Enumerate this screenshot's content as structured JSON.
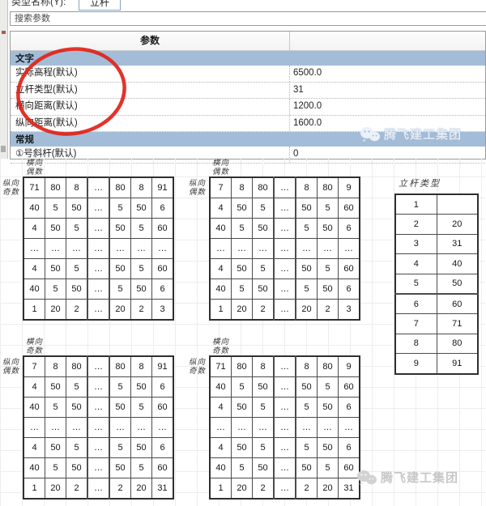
{
  "titlebar": {
    "type_name_label": "类型名称(Y):",
    "type_name_value": "立杆"
  },
  "search": {
    "value": "搜索参数"
  },
  "param_table": {
    "header": "参数",
    "sections": [
      {
        "title": "文字",
        "rows": [
          {
            "name": "实际高程(默认)",
            "value": "6500.0"
          },
          {
            "name": "立杆类型(默认)",
            "value": "31"
          },
          {
            "name": "横向距离(默认)",
            "value": "1200.0"
          },
          {
            "name": "纵向距离(默认)",
            "value": "1600.0"
          }
        ]
      },
      {
        "title": "常规",
        "rows": [
          {
            "name": "①号斜杆(默认)",
            "value": "0"
          }
        ]
      }
    ]
  },
  "watermark": {
    "text": "腾飞建工集团",
    "icon": "wechat-icon"
  },
  "annotation": {
    "shape": "red-ellipse",
    "color": "#e02318"
  },
  "grid_tables": [
    {
      "position": "top-left",
      "col_label": "横向\n偶数",
      "row_label": "纵向\n奇数",
      "rows": [
        [
          "71",
          "80",
          "8",
          "…",
          "80",
          "8",
          "91"
        ],
        [
          "40",
          "5",
          "50",
          "…",
          "5",
          "50",
          "6"
        ],
        [
          "4",
          "50",
          "5",
          "…",
          "50",
          "5",
          "60"
        ],
        [
          "…",
          "…",
          "…",
          "…",
          "…",
          "…",
          "…"
        ],
        [
          "4",
          "50",
          "5",
          "…",
          "50",
          "5",
          "60"
        ],
        [
          "40",
          "5",
          "50",
          "…",
          "5",
          "50",
          "6"
        ],
        [
          "1",
          "20",
          "2",
          "…",
          "20",
          "2",
          "3"
        ]
      ]
    },
    {
      "position": "top-middle",
      "col_label": "横向\n偶数",
      "row_label": "纵向\n偶数",
      "rows": [
        [
          "7",
          "8",
          "80",
          "…",
          "8",
          "80",
          "9"
        ],
        [
          "4",
          "50",
          "5",
          "…",
          "50",
          "5",
          "60"
        ],
        [
          "40",
          "5",
          "50",
          "…",
          "5",
          "50",
          "6"
        ],
        [
          "…",
          "…",
          "…",
          "…",
          "…",
          "…",
          "…"
        ],
        [
          "4",
          "50",
          "5",
          "…",
          "50",
          "5",
          "60"
        ],
        [
          "40",
          "5",
          "50",
          "…",
          "5",
          "50",
          "6"
        ],
        [
          "1",
          "20",
          "2",
          "…",
          "20",
          "2",
          "3"
        ]
      ]
    },
    {
      "position": "bottom-left",
      "col_label": "横向\n奇数",
      "row_label": "纵向\n偶数",
      "rows": [
        [
          "7",
          "8",
          "80",
          "…",
          "80",
          "8",
          "91"
        ],
        [
          "4",
          "50",
          "5",
          "…",
          "5",
          "50",
          "6"
        ],
        [
          "40",
          "5",
          "50",
          "…",
          "50",
          "5",
          "60"
        ],
        [
          "…",
          "…",
          "…",
          "…",
          "…",
          "…",
          "…"
        ],
        [
          "4",
          "50",
          "5",
          "…",
          "5",
          "50",
          "6"
        ],
        [
          "40",
          "5",
          "50",
          "…",
          "50",
          "5",
          "60"
        ],
        [
          "1",
          "20",
          "2",
          "…",
          "2",
          "20",
          "31"
        ]
      ]
    },
    {
      "position": "bottom-middle",
      "col_label": "横向\n奇数",
      "row_label": "纵向\n奇数",
      "rows": [
        [
          "71",
          "80",
          "8",
          "…",
          "8",
          "80",
          "9"
        ],
        [
          "40",
          "5",
          "50",
          "…",
          "50",
          "5",
          "60"
        ],
        [
          "4",
          "50",
          "5",
          "…",
          "5",
          "50",
          "6"
        ],
        [
          "…",
          "…",
          "…",
          "…",
          "…",
          "…",
          "…"
        ],
        [
          "4",
          "50",
          "5",
          "…",
          "5",
          "50",
          "6"
        ],
        [
          "40",
          "5",
          "50",
          "…",
          "50",
          "5",
          "60"
        ],
        [
          "1",
          "20",
          "2",
          "…",
          "2",
          "20",
          "31"
        ]
      ]
    }
  ],
  "pole_type_table": {
    "title": "立杆类型",
    "rows": [
      [
        "1",
        ""
      ],
      [
        "2",
        "20"
      ],
      [
        "3",
        "31"
      ],
      [
        "4",
        "40"
      ],
      [
        "5",
        "50"
      ],
      [
        "6",
        "60"
      ],
      [
        "7",
        "71"
      ],
      [
        "8",
        "80"
      ],
      [
        "9",
        "91"
      ]
    ]
  },
  "colors": {
    "section_bar": "#a3bdd8",
    "annotation_red": "#e02318",
    "watermark_gray": "#c7c7c7"
  }
}
